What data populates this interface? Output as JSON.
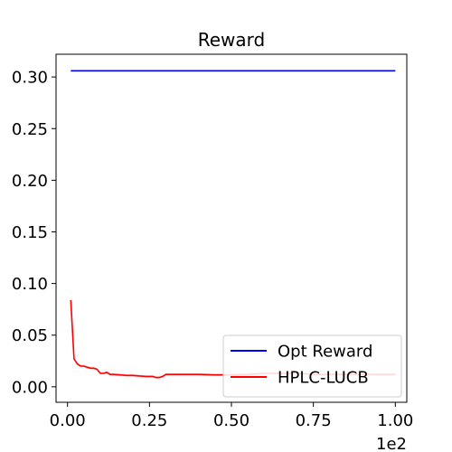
{
  "chart_data": {
    "type": "line",
    "title": "Reward",
    "xlabel": "",
    "ylabel": "",
    "x_offset_text": "1e2",
    "xlim": [
      -0.035,
      1.035
    ],
    "ylim": [
      -0.015,
      0.322
    ],
    "x_ticks": [
      0.0,
      0.25,
      0.5,
      0.75,
      1.0
    ],
    "x_tick_labels": [
      "0.00",
      "0.25",
      "0.50",
      "0.75",
      "1.00"
    ],
    "y_ticks": [
      0.0,
      0.05,
      0.1,
      0.15,
      0.2,
      0.25,
      0.3
    ],
    "y_tick_labels": [
      "0.00",
      "0.05",
      "0.10",
      "0.15",
      "0.20",
      "0.25",
      "0.30"
    ],
    "grid": false,
    "legend": {
      "placement": "lower-right"
    },
    "series": [
      {
        "name": "Opt Reward",
        "color": "#0000ff",
        "x": [
          0.01,
          1.0
        ],
        "y": [
          0.306,
          0.306
        ]
      },
      {
        "name": "HPLC-LUCB",
        "color": "#ff0000",
        "x": [
          0.01,
          0.02,
          0.03,
          0.04,
          0.05,
          0.06,
          0.07,
          0.08,
          0.09,
          0.1,
          0.11,
          0.12,
          0.13,
          0.14,
          0.16,
          0.18,
          0.2,
          0.22,
          0.24,
          0.26,
          0.27,
          0.28,
          0.29,
          0.3,
          0.32,
          0.35,
          0.4,
          0.45,
          0.5,
          0.55,
          0.6,
          0.65,
          0.7,
          0.75,
          0.8,
          0.85,
          0.9,
          0.95,
          1.0
        ],
        "y": [
          0.084,
          0.027,
          0.022,
          0.02,
          0.02,
          0.019,
          0.018,
          0.018,
          0.017,
          0.013,
          0.013,
          0.014,
          0.012,
          0.012,
          0.0115,
          0.011,
          0.011,
          0.0105,
          0.01,
          0.01,
          0.009,
          0.009,
          0.01,
          0.012,
          0.012,
          0.012,
          0.012,
          0.0115,
          0.0115,
          0.012,
          0.013,
          0.013,
          0.013,
          0.012,
          0.012,
          0.012,
          0.012,
          0.012,
          0.012
        ]
      }
    ]
  }
}
